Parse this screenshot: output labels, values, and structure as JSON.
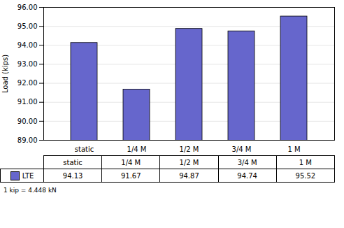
{
  "chart_data": {
    "type": "bar",
    "categories": [
      "static",
      "1/4 M",
      "1/2 M",
      "3/4 M",
      "1 M"
    ],
    "series": [
      {
        "name": "LTE",
        "color": "#6666cc",
        "values": [
          94.13,
          91.67,
          94.87,
          94.74,
          95.52
        ]
      }
    ],
    "ylabel": "Load (kips)",
    "ylim": [
      89.0,
      96.0
    ],
    "yticks": [
      {
        "value": 89.0,
        "label": "89.00"
      },
      {
        "value": 90.0,
        "label": "90.00"
      },
      {
        "value": 91.0,
        "label": "91.00"
      },
      {
        "value": 92.0,
        "label": "92.00"
      },
      {
        "value": 93.0,
        "label": "93.00"
      },
      {
        "value": 94.0,
        "label": "94.00"
      },
      {
        "value": 95.0,
        "label": "95.00"
      },
      {
        "value": 96.0,
        "label": "96.00"
      }
    ],
    "grid": true,
    "legend": "lower left",
    "data_labels": true,
    "annotations": [
      "1 kip = 4.448 kN"
    ]
  }
}
